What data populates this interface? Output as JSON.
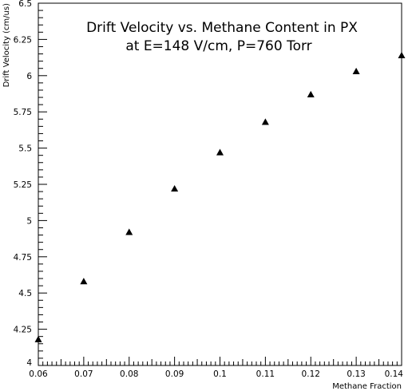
{
  "chart_data": {
    "type": "scatter",
    "title": "Drift Velocity vs. Methane Content in PX",
    "subtitle": "at E=148 V/cm, P=760 Torr",
    "xlabel": "Methane Fraction",
    "ylabel": "Drift Velocity (cm/us)",
    "xlim": [
      0.06,
      0.14
    ],
    "ylim": [
      4,
      6.5
    ],
    "x_ticks": [
      "0.06",
      "0.07",
      "0.08",
      "0.09",
      "0.1",
      "0.11",
      "0.12",
      "0.13",
      "0.14"
    ],
    "y_ticks": [
      "4",
      "4.25",
      "4.5",
      "4.75",
      "5",
      "5.25",
      "5.5",
      "5.75",
      "6",
      "6.25",
      "6.5"
    ],
    "grid": false,
    "marker": "triangle",
    "marker_color": "#000000",
    "series": [
      {
        "x": [
          0.06,
          0.07,
          0.08,
          0.09,
          0.1,
          0.11,
          0.12,
          0.13,
          0.14
        ],
        "y": [
          4.18,
          4.58,
          4.92,
          5.22,
          5.47,
          5.68,
          5.87,
          6.03,
          6.14
        ]
      }
    ]
  }
}
